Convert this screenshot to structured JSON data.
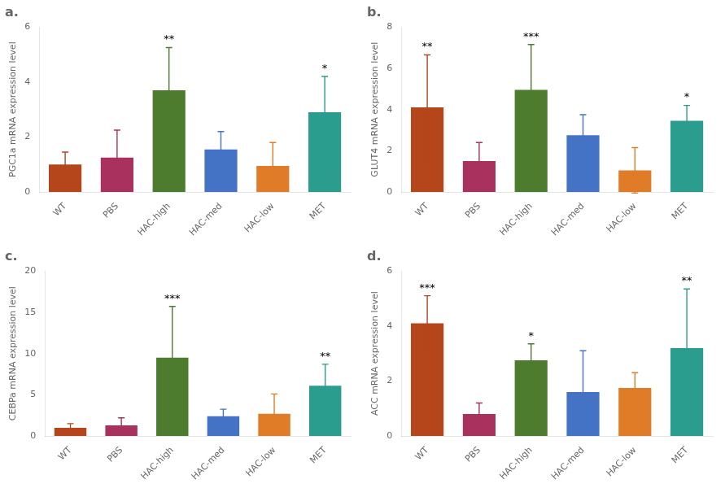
{
  "chart_data": [
    {
      "type": "bar",
      "title": "a.",
      "ylabel": "PGC1a mRNA expression level",
      "categories": [
        "WT",
        "PBS",
        "HAC-high",
        "HAC-med",
        "HAC-low",
        "MET"
      ],
      "values": [
        1.0,
        1.25,
        3.7,
        1.55,
        0.95,
        2.9
      ],
      "errors": [
        0.45,
        1.0,
        1.55,
        0.65,
        0.85,
        1.3
      ],
      "colors": [
        "#b5451b",
        "#a8315e",
        "#4e7c2f",
        "#4472c4",
        "#e07b28",
        "#2a9d8f"
      ],
      "annotations": [
        {
          "x": "HAC-high",
          "text": "**"
        },
        {
          "x": "MET",
          "text": "*"
        }
      ],
      "ylim": [
        0,
        6
      ],
      "yticks": [
        0,
        2,
        4,
        6
      ],
      "grid": false
    },
    {
      "type": "bar",
      "title": "b.",
      "ylabel": "GLUT4 mRNA expression level",
      "categories": [
        "WT",
        "PBS",
        "HAC-high",
        "HAC-med",
        "HAC-low",
        "MET"
      ],
      "values": [
        4.1,
        1.5,
        4.95,
        2.75,
        1.05,
        3.45
      ],
      "errors": [
        2.55,
        0.9,
        2.2,
        1.0,
        1.1,
        0.75
      ],
      "colors": [
        "#b5451b",
        "#a8315e",
        "#4e7c2f",
        "#4472c4",
        "#e07b28",
        "#2a9d8f"
      ],
      "annotations": [
        {
          "x": "WT",
          "text": "**"
        },
        {
          "x": "HAC-high",
          "text": "***"
        },
        {
          "x": "MET",
          "text": "*"
        }
      ],
      "ylim": [
        0,
        8
      ],
      "yticks": [
        0,
        2,
        4,
        6,
        8
      ],
      "grid": false
    },
    {
      "type": "bar",
      "title": "c.",
      "ylabel": "CEBPa mRNA expression level",
      "categories": [
        "WT",
        "PBS",
        "HAC-high",
        "HAC-med",
        "HAC-low",
        "MET"
      ],
      "values": [
        1.0,
        1.3,
        9.5,
        2.4,
        2.7,
        6.1
      ],
      "errors": [
        0.5,
        0.9,
        6.2,
        0.85,
        2.4,
        2.6
      ],
      "colors": [
        "#b5451b",
        "#a8315e",
        "#4e7c2f",
        "#4472c4",
        "#e07b28",
        "#2a9d8f"
      ],
      "annotations": [
        {
          "x": "HAC-high",
          "text": "***"
        },
        {
          "x": "MET",
          "text": "**"
        }
      ],
      "ylim": [
        0,
        20
      ],
      "yticks": [
        0,
        5,
        10,
        15,
        20
      ],
      "grid": false
    },
    {
      "type": "bar",
      "title": "d.",
      "ylabel": "ACC mRNA expression level",
      "categories": [
        "WT",
        "PBS",
        "HAC-high",
        "HAC-med",
        "HAC-low",
        "MET"
      ],
      "values": [
        4.1,
        0.8,
        2.75,
        1.6,
        1.75,
        3.2
      ],
      "errors": [
        1.0,
        0.4,
        0.6,
        1.5,
        0.55,
        2.15
      ],
      "colors": [
        "#b5451b",
        "#a8315e",
        "#4e7c2f",
        "#4472c4",
        "#e07b28",
        "#2a9d8f"
      ],
      "annotations": [
        {
          "x": "WT",
          "text": "***"
        },
        {
          "x": "HAC-high",
          "text": "*"
        },
        {
          "x": "MET",
          "text": "**"
        }
      ],
      "ylim": [
        0,
        6
      ],
      "yticks": [
        0,
        2,
        4,
        6
      ],
      "grid": false
    }
  ]
}
